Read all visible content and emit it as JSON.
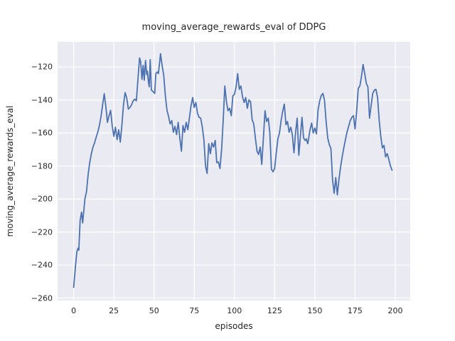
{
  "chart_data": {
    "type": "line",
    "title": "moving_average_rewards_eval of DDPG",
    "xlabel": "episodes",
    "ylabel": "moving_average_rewards_eval",
    "legend": null,
    "grid": true,
    "style": "seaborn-darkgrid",
    "colors": {
      "line": "#4c72b0",
      "plot_background": "#eaeaf2",
      "figure_background": "#ffffff",
      "gridline": "#ffffff",
      "text": "#262626"
    },
    "xlim": [
      -10,
      209.3
    ],
    "ylim": [
      -261.5,
      -104.8
    ],
    "xticks": {
      "values": [
        0,
        25,
        50,
        75,
        100,
        125,
        150,
        175,
        200
      ],
      "labels": [
        "0",
        "25",
        "50",
        "75",
        "100",
        "125",
        "150",
        "175",
        "200"
      ]
    },
    "yticks": {
      "values": [
        -120,
        -140,
        -160,
        -180,
        -200,
        -220,
        -240,
        -260
      ],
      "labels": [
        "−120",
        "−140",
        "−160",
        "−180",
        "−200",
        "−220",
        "−240",
        "−260"
      ]
    },
    "series_name": "moving_average_rewards_eval",
    "points": [
      [
        0,
        -253.5
      ],
      [
        1,
        -242
      ],
      [
        2,
        -232
      ],
      [
        2.7,
        -229.8
      ],
      [
        3.2,
        -231
      ],
      [
        4,
        -213
      ],
      [
        4.9,
        -208
      ],
      [
        5.6,
        -214.5
      ],
      [
        7,
        -200
      ],
      [
        8,
        -195.5
      ],
      [
        9,
        -185
      ],
      [
        10,
        -178
      ],
      [
        11,
        -172.5
      ],
      [
        12,
        -168.5
      ],
      [
        13,
        -166
      ],
      [
        14,
        -162.5
      ],
      [
        15,
        -159.5
      ],
      [
        16,
        -155.5
      ],
      [
        17,
        -150
      ],
      [
        18,
        -143
      ],
      [
        19,
        -136.2
      ],
      [
        20,
        -144
      ],
      [
        21,
        -153.5
      ],
      [
        22,
        -149.5
      ],
      [
        23,
        -146.3
      ],
      [
        24,
        -156
      ],
      [
        25,
        -162
      ],
      [
        26,
        -156.5
      ],
      [
        27,
        -164
      ],
      [
        28,
        -158
      ],
      [
        29,
        -165.5
      ],
      [
        30,
        -155
      ],
      [
        31,
        -143
      ],
      [
        32,
        -135.5
      ],
      [
        33,
        -139
      ],
      [
        34,
        -145.5
      ],
      [
        35,
        -144.5
      ],
      [
        36,
        -143
      ],
      [
        37,
        -140.5
      ],
      [
        38,
        -139.5
      ],
      [
        39,
        -140.5
      ],
      [
        40,
        -127
      ],
      [
        41,
        -114.5
      ],
      [
        41.7,
        -117
      ],
      [
        42.5,
        -127.5
      ],
      [
        43.2,
        -119
      ],
      [
        43.9,
        -128
      ],
      [
        44.7,
        -116
      ],
      [
        45.4,
        -124.5
      ],
      [
        45.8,
        -122.5
      ],
      [
        46.5,
        -129
      ],
      [
        47,
        -132
      ],
      [
        47.6,
        -115.5
      ],
      [
        48.3,
        -134
      ],
      [
        49.5,
        -135
      ],
      [
        50.4,
        -136
      ],
      [
        51.1,
        -124
      ],
      [
        52,
        -123
      ],
      [
        52.7,
        -124
      ],
      [
        54,
        -112
      ],
      [
        55,
        -119
      ],
      [
        56,
        -125
      ],
      [
        57,
        -137
      ],
      [
        58,
        -146
      ],
      [
        59,
        -150
      ],
      [
        60,
        -154.5
      ],
      [
        61,
        -152.5
      ],
      [
        62,
        -159.5
      ],
      [
        63,
        -156
      ],
      [
        64,
        -161
      ],
      [
        65,
        -153.5
      ],
      [
        66,
        -163
      ],
      [
        67,
        -171
      ],
      [
        68,
        -155.5
      ],
      [
        69,
        -159.5
      ],
      [
        70,
        -153.5
      ],
      [
        71,
        -158
      ],
      [
        72,
        -150.5
      ],
      [
        73,
        -143.5
      ],
      [
        74,
        -138.5
      ],
      [
        75,
        -144.5
      ],
      [
        76,
        -141.5
      ],
      [
        77,
        -148
      ],
      [
        78,
        -150.5
      ],
      [
        79,
        -151
      ],
      [
        80,
        -156.5
      ],
      [
        81,
        -164
      ],
      [
        82,
        -180
      ],
      [
        83,
        -184.5
      ],
      [
        84,
        -166.5
      ],
      [
        85,
        -172.5
      ],
      [
        86,
        -166
      ],
      [
        87,
        -168.5
      ],
      [
        88,
        -164.5
      ],
      [
        89,
        -178
      ],
      [
        90,
        -177.5
      ],
      [
        91,
        -181.5
      ],
      [
        92,
        -170
      ],
      [
        93,
        -152
      ],
      [
        94,
        -131.5
      ],
      [
        95,
        -141
      ],
      [
        96,
        -146.5
      ],
      [
        97,
        -145
      ],
      [
        98,
        -149.5
      ],
      [
        99,
        -137.5
      ],
      [
        100,
        -136.5
      ],
      [
        101,
        -132
      ],
      [
        102,
        -124
      ],
      [
        103,
        -133.5
      ],
      [
        104,
        -131.5
      ],
      [
        105,
        -138
      ],
      [
        106,
        -141.5
      ],
      [
        107,
        -138.5
      ],
      [
        108,
        -145
      ],
      [
        109,
        -140
      ],
      [
        110,
        -141
      ],
      [
        111,
        -152
      ],
      [
        112,
        -154.5
      ],
      [
        113,
        -163
      ],
      [
        114,
        -171
      ],
      [
        115,
        -173
      ],
      [
        116,
        -168.5
      ],
      [
        117,
        -179
      ],
      [
        118,
        -163
      ],
      [
        119,
        -146.5
      ],
      [
        120,
        -153
      ],
      [
        121,
        -151
      ],
      [
        122,
        -159.5
      ],
      [
        123,
        -182
      ],
      [
        124,
        -183.5
      ],
      [
        125,
        -181.5
      ],
      [
        126,
        -172
      ],
      [
        127,
        -163.5
      ],
      [
        128,
        -160
      ],
      [
        129,
        -152.5
      ],
      [
        130,
        -147
      ],
      [
        131,
        -142.5
      ],
      [
        132,
        -155
      ],
      [
        133,
        -153
      ],
      [
        134,
        -159.5
      ],
      [
        135,
        -156.5
      ],
      [
        136,
        -161
      ],
      [
        137,
        -172
      ],
      [
        138,
        -160
      ],
      [
        139,
        -151
      ],
      [
        140,
        -173.5
      ],
      [
        141,
        -162
      ],
      [
        142,
        -150.5
      ],
      [
        143,
        -163
      ],
      [
        144,
        -164.5
      ],
      [
        144.6,
        -163.5
      ],
      [
        145.6,
        -166.5
      ],
      [
        147,
        -158
      ],
      [
        148,
        -154
      ],
      [
        149,
        -160
      ],
      [
        150,
        -157
      ],
      [
        151,
        -160.5
      ],
      [
        152,
        -146
      ],
      [
        153,
        -140.5
      ],
      [
        154,
        -137.3
      ],
      [
        155,
        -136
      ],
      [
        156,
        -140
      ],
      [
        157,
        -153
      ],
      [
        158,
        -163
      ],
      [
        159,
        -167
      ],
      [
        160,
        -169.5
      ],
      [
        161,
        -188.5
      ],
      [
        162,
        -196.5
      ],
      [
        163,
        -187
      ],
      [
        164,
        -197.5
      ],
      [
        165,
        -188
      ],
      [
        166,
        -180.5
      ],
      [
        167,
        -174.5
      ],
      [
        168,
        -169
      ],
      [
        169,
        -164
      ],
      [
        170,
        -159.5
      ],
      [
        171,
        -156
      ],
      [
        172,
        -152.5
      ],
      [
        173,
        -150.5
      ],
      [
        174,
        -149.5
      ],
      [
        175,
        -157.5
      ],
      [
        176,
        -146.5
      ],
      [
        177,
        -133
      ],
      [
        178,
        -131.5
      ],
      [
        179,
        -125.5
      ],
      [
        180,
        -118.5
      ],
      [
        181,
        -124
      ],
      [
        182,
        -130
      ],
      [
        183,
        -132
      ],
      [
        184,
        -151
      ],
      [
        185,
        -143.5
      ],
      [
        186,
        -136
      ],
      [
        187,
        -134
      ],
      [
        188,
        -133.5
      ],
      [
        189,
        -138.5
      ],
      [
        190,
        -152
      ],
      [
        191,
        -162
      ],
      [
        192,
        -169
      ],
      [
        193,
        -167.5
      ],
      [
        194,
        -174.5
      ],
      [
        195,
        -172.5
      ],
      [
        196,
        -176
      ],
      [
        197,
        -180
      ],
      [
        198,
        -182.5
      ]
    ]
  }
}
